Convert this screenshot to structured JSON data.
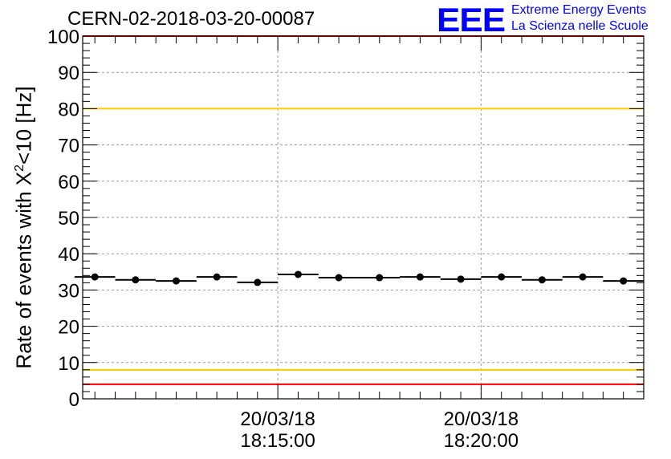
{
  "title": "CERN-02-2018-03-20-00087",
  "logo": {
    "mark": "EEE",
    "line1": "Extreme Energy Events",
    "line2": "La Scienza nelle Scuole"
  },
  "chart_data": {
    "type": "scatter",
    "title": "CERN-02-2018-03-20-00087",
    "ylabel": {
      "pre": "Rate of events with X",
      "sup": "2",
      "post": "<10 [Hz]"
    },
    "xlabel": "",
    "ylim": [
      0,
      100
    ],
    "yticks": [
      0,
      10,
      20,
      30,
      40,
      50,
      60,
      70,
      80,
      90,
      100
    ],
    "xlim_minutes": [
      0,
      13.8
    ],
    "xticks": [
      {
        "at": 4.8,
        "date": "20/03/18",
        "time": "18:15:00"
      },
      {
        "at": 9.8,
        "date": "20/03/18",
        "time": "18:20:00"
      }
    ],
    "grid": true,
    "reference_lines": [
      {
        "value": 80,
        "color": "#ffcc00"
      },
      {
        "value": 8,
        "color": "#ffcc00"
      },
      {
        "value": 100,
        "color": "#ff0000"
      },
      {
        "value": 4,
        "color": "#ff0000"
      }
    ],
    "bin_width_minutes": 1.0,
    "points": [
      {
        "x": 0.3,
        "y": 33.6
      },
      {
        "x": 1.3,
        "y": 32.8
      },
      {
        "x": 2.3,
        "y": 32.5
      },
      {
        "x": 3.3,
        "y": 33.6
      },
      {
        "x": 4.3,
        "y": 32.1
      },
      {
        "x": 5.3,
        "y": 34.3
      },
      {
        "x": 6.3,
        "y": 33.4
      },
      {
        "x": 7.3,
        "y": 33.4
      },
      {
        "x": 8.3,
        "y": 33.6
      },
      {
        "x": 9.3,
        "y": 33.0
      },
      {
        "x": 10.3,
        "y": 33.6
      },
      {
        "x": 11.3,
        "y": 32.8
      },
      {
        "x": 12.3,
        "y": 33.6
      },
      {
        "x": 13.3,
        "y": 32.5
      }
    ]
  }
}
